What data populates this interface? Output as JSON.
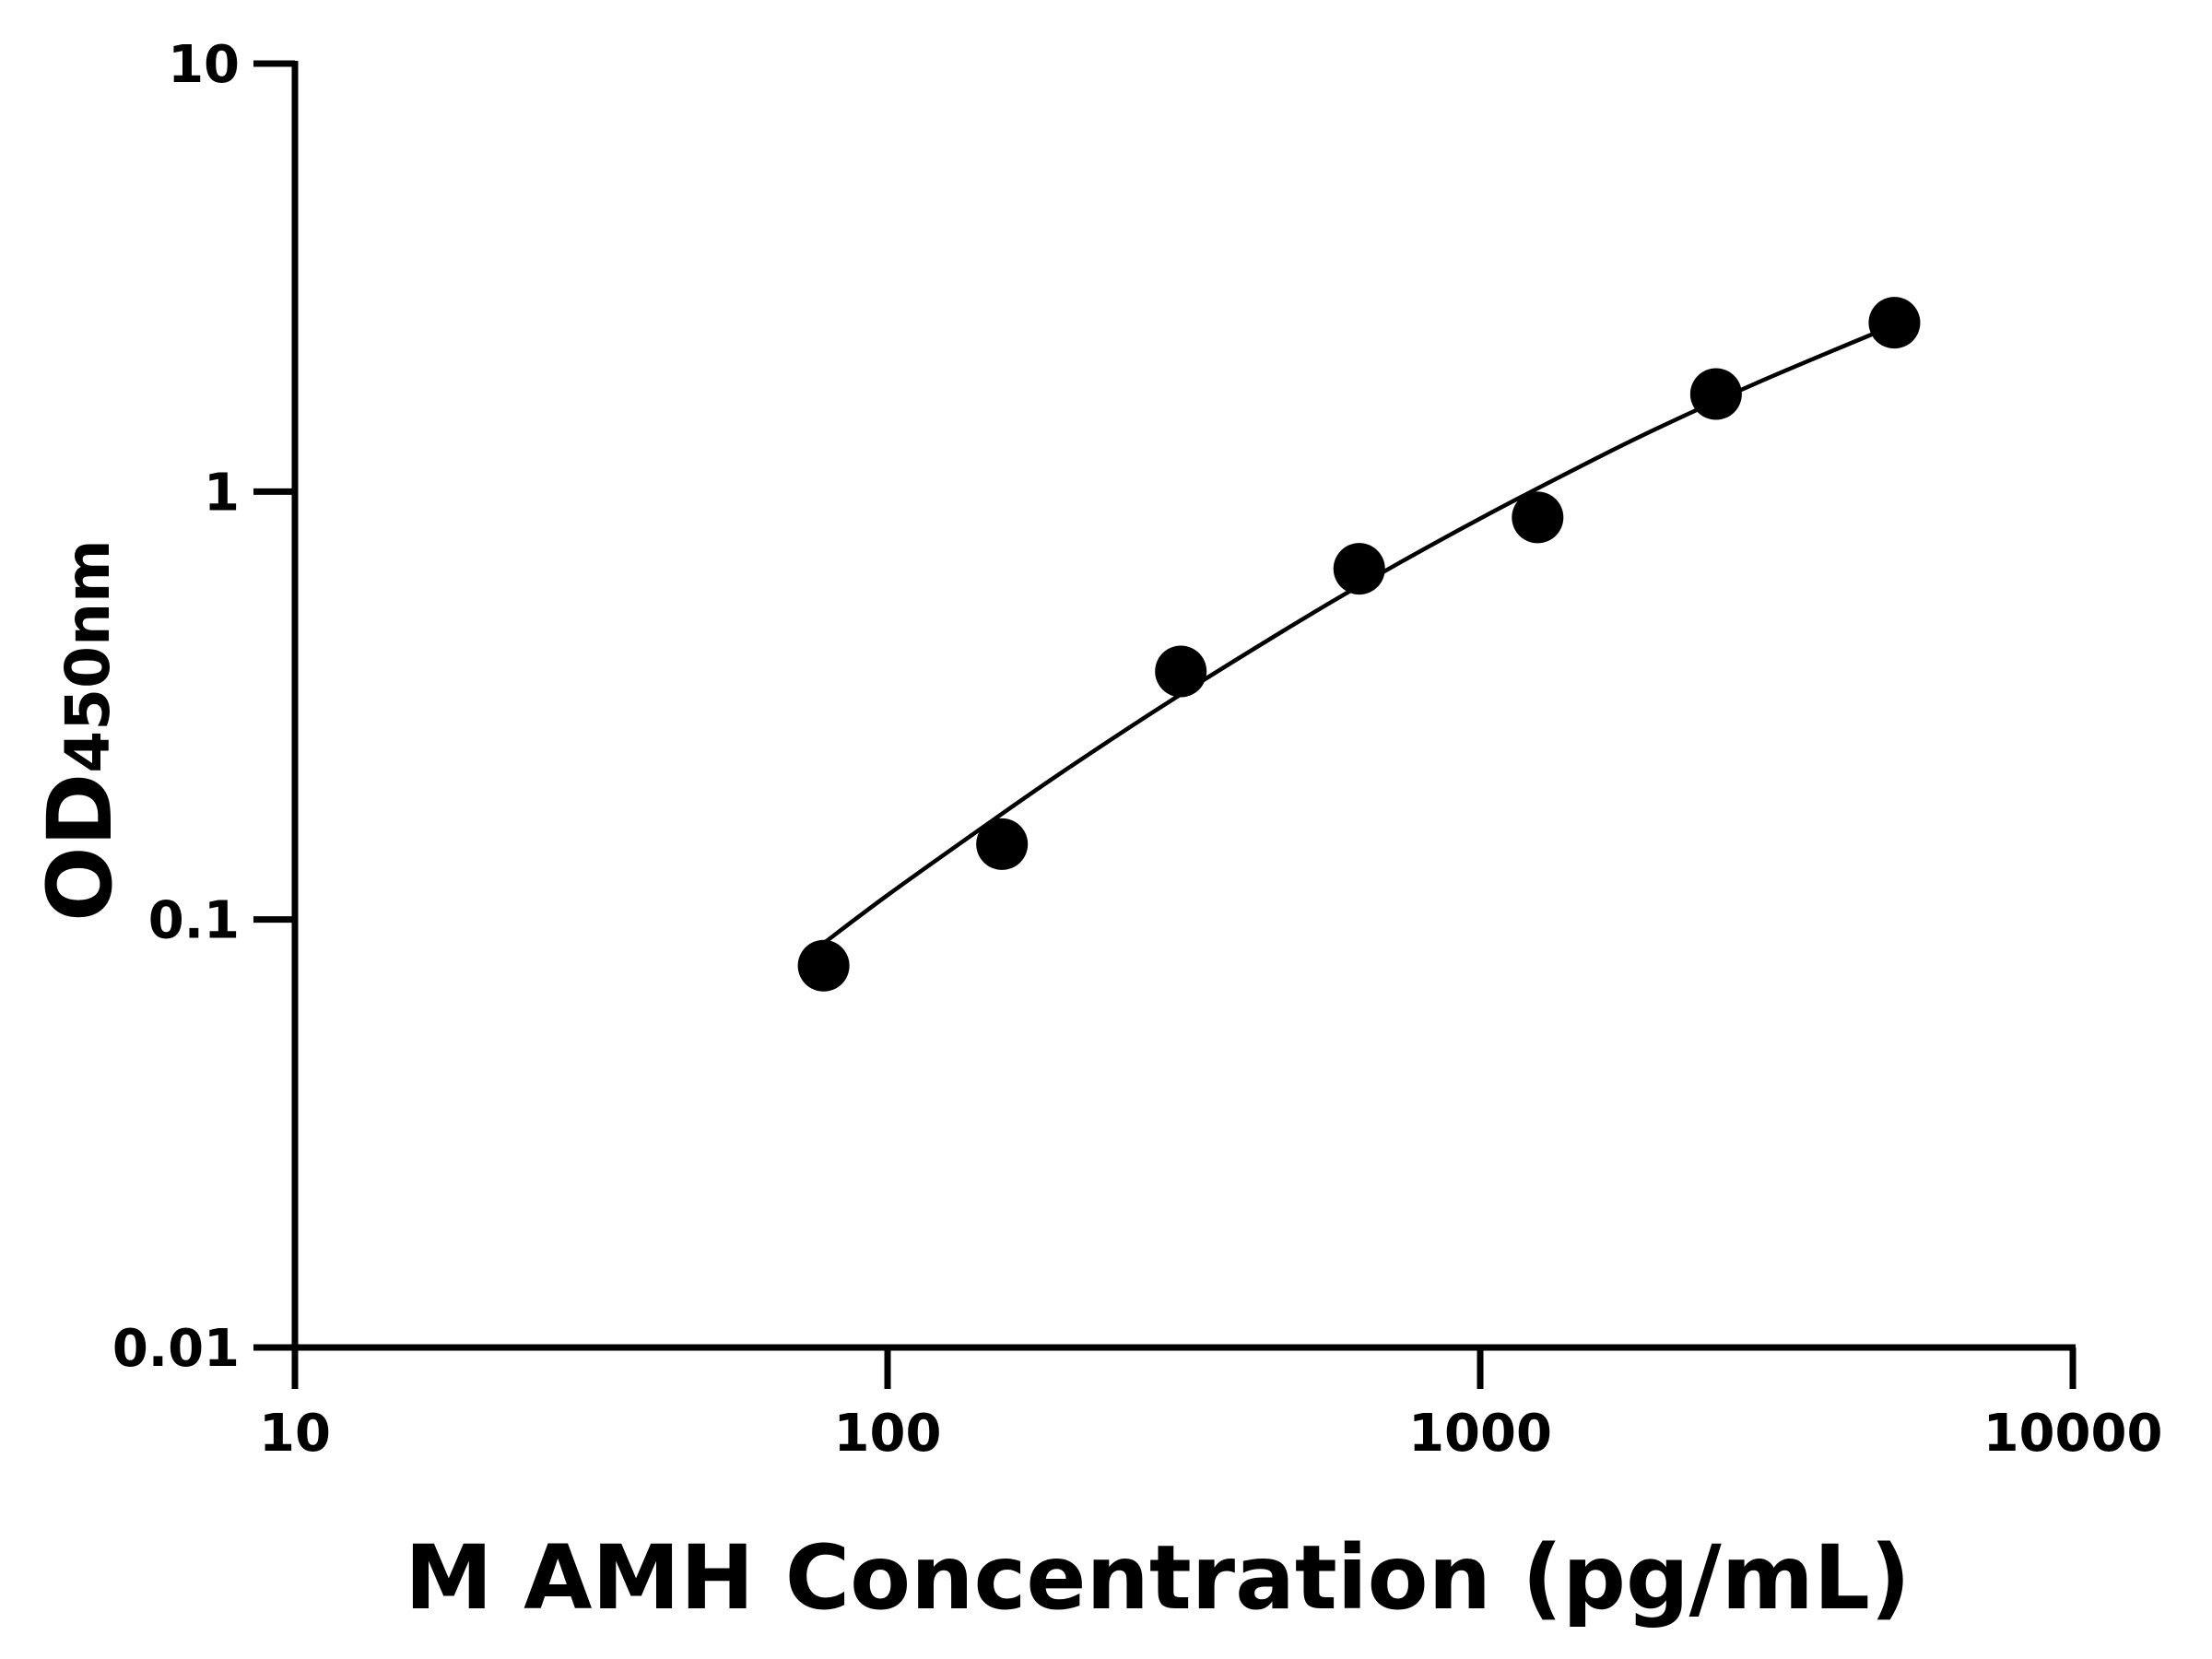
{
  "chart_data": {
    "type": "scatter",
    "title": "",
    "xlabel": "M AMH Concentration (pg/mL)",
    "ylabel": {
      "main": "OD",
      "subscript": "450nm"
    },
    "x_scale": "log",
    "y_scale": "log",
    "xlim": [
      10,
      10000
    ],
    "ylim": [
      0.01,
      10
    ],
    "x_ticks": [
      "10",
      "100",
      "1000",
      "10000"
    ],
    "y_ticks": [
      "0.01",
      "0.1",
      "1",
      "10"
    ],
    "grid": false,
    "legend": "none",
    "marker_color": "#000000",
    "points": [
      {
        "x": 78,
        "y": 0.078
      },
      {
        "x": 156,
        "y": 0.15
      },
      {
        "x": 312.5,
        "y": 0.38
      },
      {
        "x": 625,
        "y": 0.66
      },
      {
        "x": 1250,
        "y": 0.87
      },
      {
        "x": 2500,
        "y": 1.69
      },
      {
        "x": 5000,
        "y": 2.48
      }
    ],
    "fit_curve": [
      {
        "x": 78,
        "y": 0.088
      },
      {
        "x": 100,
        "y": 0.114
      },
      {
        "x": 150,
        "y": 0.17
      },
      {
        "x": 200,
        "y": 0.224
      },
      {
        "x": 300,
        "y": 0.324
      },
      {
        "x": 500,
        "y": 0.502
      },
      {
        "x": 700,
        "y": 0.659
      },
      {
        "x": 1000,
        "y": 0.865
      },
      {
        "x": 1500,
        "y": 1.158
      },
      {
        "x": 2000,
        "y": 1.41
      },
      {
        "x": 3000,
        "y": 1.82
      },
      {
        "x": 5000,
        "y": 2.45
      }
    ]
  }
}
